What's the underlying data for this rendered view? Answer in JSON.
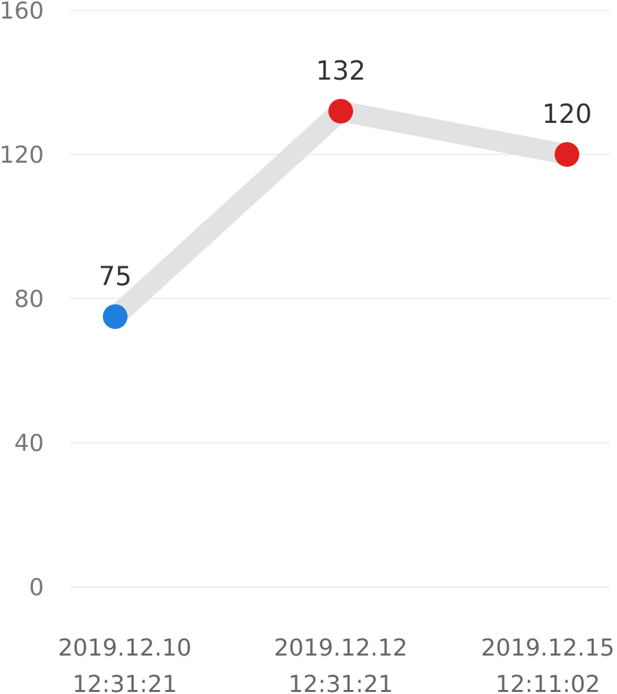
{
  "chart_data": {
    "type": "line",
    "categories": [
      [
        "2019.12.10",
        "12:31:21"
      ],
      [
        "2019.12.12",
        "12:31:21"
      ],
      [
        "2019.12.15",
        "12:11:02"
      ]
    ],
    "values": [
      75,
      132,
      120
    ],
    "data_labels": [
      "75",
      "132",
      "120"
    ],
    "y_ticks": [
      0,
      40,
      80,
      120,
      160
    ],
    "ylim": [
      0,
      160
    ],
    "grid": true,
    "line_color": "#e2e2e2",
    "point_colors": [
      "#1e7fe0",
      "#e02020",
      "#e02020"
    ]
  }
}
